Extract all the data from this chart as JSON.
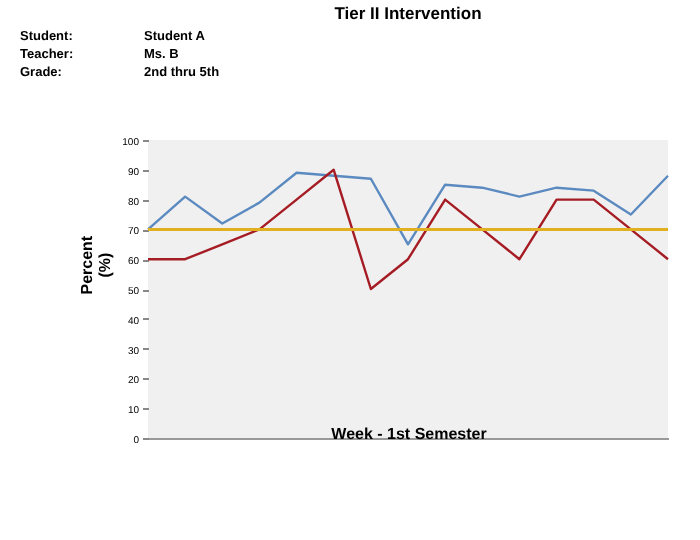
{
  "chart_data": {
    "type": "line",
    "title": "Tier II Intervention",
    "xlabel": "Week - 1st Semester",
    "ylabel": "Percent\n(%)",
    "annotations": [
      "Student:\tStudent A",
      "Teacher:\tMs. B",
      "Grade:\t2nd thru 5th"
    ],
    "categories": [
      null,
      null,
      null,
      null,
      null,
      null,
      null,
      null,
      null,
      null,
      null,
      null,
      null,
      null,
      null
    ],
    "series": [
      {
        "color": "#5b8ac0",
        "values": [
          70,
          81,
          72,
          79,
          89,
          88,
          87,
          65,
          85,
          84,
          81,
          84,
          83,
          75,
          88
        ]
      },
      {
        "color": "#a51c24",
        "values": [
          60,
          60,
          65,
          70,
          80,
          90,
          50,
          60,
          80,
          70,
          60,
          80,
          80,
          70,
          60
        ]
      }
    ],
    "ref_lines": [
      {
        "axis": "y",
        "value": 70,
        "color": "#e0b020"
      }
    ],
    "ylim": [
      0,
      100
    ],
    "yticks": [
      0,
      10,
      20,
      30,
      40,
      50,
      60,
      70,
      80,
      90,
      100
    ],
    "grid": false,
    "legend": false,
    "marker": "none",
    "line_style": "solid"
  }
}
